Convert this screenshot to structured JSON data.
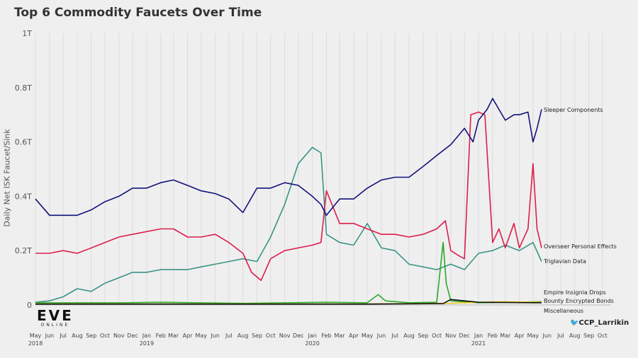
{
  "chart_data": {
    "type": "line",
    "title": "Top 6 Commodity Faucets Over Time",
    "ylabel": "Daily Net ISK Faucet/Sink",
    "xlabel": "",
    "ylim": [
      0,
      1000
    ],
    "y_unit": "billion ISK",
    "yticks": [
      {
        "v": 0,
        "label": "0"
      },
      {
        "v": 200,
        "label": "0.2T"
      },
      {
        "v": 400,
        "label": "0.4T"
      },
      {
        "v": 600,
        "label": "0.6T"
      },
      {
        "v": 800,
        "label": "0.8T"
      },
      {
        "v": 1000,
        "label": "1T"
      }
    ],
    "xlim": [
      "2018-05-01",
      "2021-10-20"
    ],
    "xticks": [
      {
        "d": "2018-05-01",
        "m": "May",
        "y": "2018"
      },
      {
        "d": "2018-06-01",
        "m": "Jun"
      },
      {
        "d": "2018-07-01",
        "m": "Jul"
      },
      {
        "d": "2018-08-01",
        "m": "Aug"
      },
      {
        "d": "2018-09-01",
        "m": "Sep"
      },
      {
        "d": "2018-10-01",
        "m": "Oct"
      },
      {
        "d": "2018-11-01",
        "m": "Nov"
      },
      {
        "d": "2018-12-01",
        "m": "Dec"
      },
      {
        "d": "2019-01-01",
        "m": "Jan",
        "y": "2019"
      },
      {
        "d": "2019-02-01",
        "m": "Feb"
      },
      {
        "d": "2019-03-01",
        "m": "Mar"
      },
      {
        "d": "2019-04-01",
        "m": "Apr"
      },
      {
        "d": "2019-05-01",
        "m": "May"
      },
      {
        "d": "2019-06-01",
        "m": "Jun"
      },
      {
        "d": "2019-07-01",
        "m": "Jul"
      },
      {
        "d": "2019-08-01",
        "m": "Aug"
      },
      {
        "d": "2019-09-01",
        "m": "Sep"
      },
      {
        "d": "2019-10-01",
        "m": "Oct"
      },
      {
        "d": "2019-11-01",
        "m": "Nov"
      },
      {
        "d": "2019-12-01",
        "m": "Dec"
      },
      {
        "d": "2020-01-01",
        "m": "Jan",
        "y": "2020"
      },
      {
        "d": "2020-02-01",
        "m": "Feb"
      },
      {
        "d": "2020-03-01",
        "m": "Mar"
      },
      {
        "d": "2020-04-01",
        "m": "Apr"
      },
      {
        "d": "2020-05-01",
        "m": "May"
      },
      {
        "d": "2020-06-01",
        "m": "Jun"
      },
      {
        "d": "2020-07-01",
        "m": "Jul"
      },
      {
        "d": "2020-08-01",
        "m": "Aug"
      },
      {
        "d": "2020-09-01",
        "m": "Sep"
      },
      {
        "d": "2020-10-01",
        "m": "Oct"
      },
      {
        "d": "2020-11-01",
        "m": "Nov"
      },
      {
        "d": "2020-12-01",
        "m": "Dec"
      },
      {
        "d": "2021-01-01",
        "m": "Jan",
        "y": "2021"
      },
      {
        "d": "2021-02-01",
        "m": "Feb"
      },
      {
        "d": "2021-03-01",
        "m": "Mar"
      },
      {
        "d": "2021-04-01",
        "m": "Apr"
      },
      {
        "d": "2021-05-01",
        "m": "May"
      },
      {
        "d": "2021-06-01",
        "m": "Jun"
      },
      {
        "d": "2021-07-01",
        "m": "Jul"
      },
      {
        "d": "2021-08-01",
        "m": "Aug"
      },
      {
        "d": "2021-09-01",
        "m": "Sep"
      },
      {
        "d": "2021-10-01",
        "m": "Oct"
      }
    ],
    "grid": {
      "vertical": true,
      "horizontal": false
    },
    "legend": "direct-labels-at-line-ends",
    "series": [
      {
        "name": "Sleeper Components",
        "color": "#12127a",
        "x": [
          "2018-05-01",
          "2018-06-01",
          "2018-07-01",
          "2018-08-01",
          "2018-09-01",
          "2018-10-01",
          "2018-11-01",
          "2018-12-01",
          "2019-01-01",
          "2019-02-01",
          "2019-03-01",
          "2019-04-01",
          "2019-05-01",
          "2019-06-01",
          "2019-07-01",
          "2019-08-01",
          "2019-09-01",
          "2019-10-01",
          "2019-11-01",
          "2019-12-01",
          "2020-01-01",
          "2020-01-20",
          "2020-02-01",
          "2020-03-01",
          "2020-04-01",
          "2020-05-01",
          "2020-06-01",
          "2020-07-01",
          "2020-08-01",
          "2020-09-01",
          "2020-10-01",
          "2020-11-01",
          "2020-12-01",
          "2020-12-20",
          "2021-01-01",
          "2021-01-20",
          "2021-02-01",
          "2021-02-15",
          "2021-03-01",
          "2021-03-20",
          "2021-04-01",
          "2021-04-20",
          "2021-05-01",
          "2021-05-10",
          "2021-05-20"
        ],
        "y": [
          390,
          330,
          330,
          330,
          350,
          380,
          400,
          430,
          430,
          450,
          460,
          440,
          420,
          410,
          390,
          340,
          430,
          430,
          450,
          440,
          400,
          370,
          330,
          390,
          390,
          430,
          460,
          470,
          470,
          510,
          550,
          590,
          650,
          600,
          680,
          720,
          760,
          720,
          680,
          700,
          700,
          710,
          600,
          650,
          720
        ]
      },
      {
        "name": "Overseer Personal Effects",
        "color": "#dc1e4a",
        "x": [
          "2018-05-01",
          "2018-06-01",
          "2018-07-01",
          "2018-08-01",
          "2018-09-01",
          "2018-10-01",
          "2018-11-01",
          "2018-12-01",
          "2019-01-01",
          "2019-02-01",
          "2019-03-01",
          "2019-04-01",
          "2019-05-01",
          "2019-06-01",
          "2019-07-01",
          "2019-08-01",
          "2019-08-20",
          "2019-09-10",
          "2019-10-01",
          "2019-11-01",
          "2019-12-01",
          "2020-01-01",
          "2020-01-20",
          "2020-02-01",
          "2020-03-01",
          "2020-04-01",
          "2020-05-01",
          "2020-06-01",
          "2020-07-01",
          "2020-08-01",
          "2020-09-01",
          "2020-10-01",
          "2020-10-20",
          "2020-11-01",
          "2020-11-20",
          "2020-12-01",
          "2020-12-15",
          "2021-01-01",
          "2021-01-15",
          "2021-02-01",
          "2021-02-15",
          "2021-03-01",
          "2021-03-20",
          "2021-04-01",
          "2021-04-20",
          "2021-05-01",
          "2021-05-10",
          "2021-05-20"
        ],
        "y": [
          190,
          190,
          200,
          190,
          210,
          230,
          250,
          260,
          270,
          280,
          280,
          250,
          250,
          260,
          230,
          190,
          120,
          90,
          170,
          200,
          210,
          220,
          230,
          420,
          300,
          300,
          280,
          260,
          260,
          250,
          260,
          280,
          310,
          200,
          180,
          170,
          700,
          710,
          700,
          230,
          280,
          210,
          300,
          210,
          280,
          520,
          280,
          210
        ]
      },
      {
        "name": "Triglavian Data",
        "color": "#3a9486",
        "x": [
          "2018-05-01",
          "2018-06-01",
          "2018-07-01",
          "2018-08-01",
          "2018-09-01",
          "2018-10-01",
          "2018-11-01",
          "2018-12-01",
          "2019-01-01",
          "2019-02-01",
          "2019-03-01",
          "2019-04-01",
          "2019-05-01",
          "2019-06-01",
          "2019-07-01",
          "2019-08-01",
          "2019-09-01",
          "2019-10-01",
          "2019-11-01",
          "2019-12-01",
          "2020-01-01",
          "2020-01-20",
          "2020-02-01",
          "2020-03-01",
          "2020-04-01",
          "2020-05-01",
          "2020-06-01",
          "2020-07-01",
          "2020-08-01",
          "2020-09-01",
          "2020-10-01",
          "2020-11-01",
          "2020-12-01",
          "2021-01-01",
          "2021-02-01",
          "2021-03-01",
          "2021-04-01",
          "2021-05-01",
          "2021-05-20"
        ],
        "y": [
          10,
          15,
          30,
          60,
          50,
          80,
          100,
          120,
          120,
          130,
          130,
          130,
          140,
          150,
          160,
          170,
          160,
          250,
          370,
          520,
          580,
          560,
          260,
          230,
          220,
          300,
          210,
          200,
          150,
          140,
          130,
          150,
          130,
          190,
          200,
          220,
          200,
          230,
          160
        ]
      },
      {
        "name": "Empire Insignia Drops",
        "color": "#2aa82a",
        "x": [
          "2018-05-01",
          "2018-08-01",
          "2018-11-01",
          "2019-02-01",
          "2019-05-01",
          "2019-08-01",
          "2019-11-01",
          "2020-02-01",
          "2020-05-01",
          "2020-05-25",
          "2020-06-10",
          "2020-08-01",
          "2020-10-01",
          "2020-10-15",
          "2020-10-22",
          "2020-11-01",
          "2021-01-01",
          "2021-05-20"
        ],
        "y": [
          8,
          8,
          8,
          10,
          8,
          6,
          8,
          10,
          8,
          38,
          15,
          8,
          10,
          230,
          80,
          15,
          8,
          12
        ]
      },
      {
        "name": "Bounty Encrypted Bonds",
        "color": "#e8c820",
        "x": [
          "2018-05-01",
          "2019-05-01",
          "2020-05-01",
          "2020-11-01",
          "2021-01-01",
          "2021-03-01",
          "2021-05-20"
        ],
        "y": [
          4,
          4,
          4,
          6,
          10,
          12,
          10
        ]
      },
      {
        "name": "Miscellaneous",
        "color": "#111111",
        "x": [
          "2018-05-01",
          "2019-05-01",
          "2020-05-01",
          "2020-10-15",
          "2020-11-01",
          "2021-01-01",
          "2021-05-20"
        ],
        "y": [
          3,
          3,
          3,
          5,
          20,
          10,
          8
        ]
      }
    ]
  },
  "branding": {
    "logo_text": "EVE",
    "logo_sub": "ONLINE",
    "credit": "CCP_Larrikin"
  }
}
